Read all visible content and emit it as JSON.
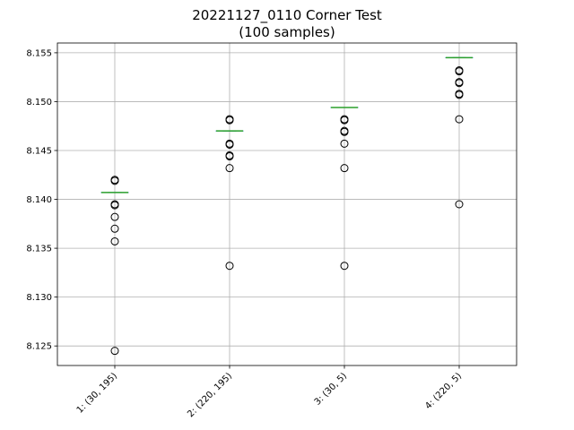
{
  "chart_data": {
    "type": "box",
    "title": "20221127_0110 Corner Test",
    "subtitle": "(100 samples)",
    "xlabel": "",
    "ylabel": "",
    "grid": true,
    "ylim": [
      8.123,
      8.156
    ],
    "yticks": [
      8.125,
      8.13,
      8.135,
      8.14,
      8.145,
      8.15,
      8.155
    ],
    "ytick_labels": [
      "8.125",
      "8.130",
      "8.135",
      "8.140",
      "8.145",
      "8.150",
      "8.155"
    ],
    "colors": {
      "median": "#2ca02c",
      "outlier": "#000000",
      "grid": "#b0b0b0"
    },
    "categories": [
      "1: (30, 195)",
      "2: (220, 195)",
      "3: (30, 5)",
      "4: (220, 5)"
    ],
    "boxes": [
      {
        "median": 8.1407,
        "q1": 8.1407,
        "q3": 8.1407,
        "whisker_low": 8.1407,
        "whisker_high": 8.1407,
        "outliers": [
          8.142,
          8.1419,
          8.1395,
          8.1394,
          8.1382,
          8.137,
          8.1357,
          8.1245
        ]
      },
      {
        "median": 8.147,
        "q1": 8.147,
        "q3": 8.147,
        "whisker_low": 8.147,
        "whisker_high": 8.147,
        "outliers": [
          8.1482,
          8.1481,
          8.1457,
          8.1456,
          8.1445,
          8.1444,
          8.1432,
          8.1332
        ]
      },
      {
        "median": 8.1494,
        "q1": 8.1494,
        "q3": 8.1494,
        "whisker_low": 8.1494,
        "whisker_high": 8.1494,
        "outliers": [
          8.1482,
          8.1481,
          8.147,
          8.1469,
          8.1457,
          8.1432,
          8.1332
        ]
      },
      {
        "median": 8.1545,
        "q1": 8.1545,
        "q3": 8.1545,
        "whisker_low": 8.1545,
        "whisker_high": 8.1545,
        "outliers": [
          8.1532,
          8.1531,
          8.152,
          8.1519,
          8.1508,
          8.1507,
          8.1482,
          8.1395
        ]
      }
    ]
  }
}
